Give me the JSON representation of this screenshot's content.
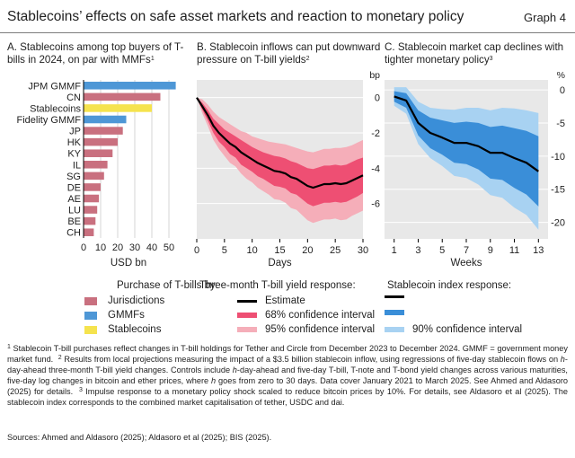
{
  "header": {
    "title": "Stablecoins’ effects on safe asset markets and reaction to monetary policy",
    "graph_number": "Graph 4"
  },
  "panels": {
    "a": {
      "title": "A. Stablecoins among top buyers of T-bills in 2024, on par with MMFs",
      "sup": "1"
    },
    "b": {
      "title": "B. Stablecoin inflows can put downward pressure on T-bill yields",
      "sup": "2"
    },
    "c": {
      "title": "C. Stablecoin market cap declines with tighter monetary policy",
      "sup": "3"
    }
  },
  "legends": {
    "a": {
      "heading": "Purchase of T-bills by:",
      "items": [
        {
          "label": "Jurisdictions",
          "color": "#c9707f"
        },
        {
          "label": "GMMFs",
          "color": "#4e97d6"
        },
        {
          "label": "Stablecoins",
          "color": "#f5e34e"
        }
      ]
    },
    "b": {
      "heading": "Three-month T-bill yield response:",
      "items": [
        {
          "label": "Estimate",
          "color": "#000000"
        },
        {
          "label": "68% confidence interval",
          "color": "#ee4f73"
        },
        {
          "label": "95% confidence interval",
          "color": "#f5aeb9"
        }
      ]
    },
    "c": {
      "heading": "Stablecoin index response:",
      "items": [
        {
          "label": "",
          "color": "#000000"
        },
        {
          "label": "",
          "color": "#3a8ed8"
        },
        {
          "label": "90% confidence interval",
          "color": "#a8d2f2"
        }
      ]
    }
  },
  "footnotes": {
    "n1": "Stablecoin T-bill purchases reflect changes in T-bill holdings for Tether and Circle from December 2023 to December 2024. GMMF = government money market fund.",
    "n2a": "Results from local projections measuring the impact of a $3.5 billion stablecoin inflow, using regressions of five-day stablecoin flows on ",
    "n2b": "-day-ahead three-month T-bill yield changes. Controls include ",
    "n2c": "-day-ahead and five-day T-bill, T-note and T-bond yield changes across various maturities, five-day log changes in bitcoin and ether prices, where ",
    "n2d": " goes from zero to 30 days. Data cover January 2021 to March 2025. See Ahmed and Aldasoro (2025) for details.",
    "n3": "Impulse response to a monetary policy shock scaled to reduce bitcoin prices by 10%. For details, see Aldasoro et al (2025). The stablecoin index corresponds to the combined market capitalisation of tether, USDC and dai.",
    "h": "h",
    "m1": "1",
    "m2": "2",
    "m3": "3"
  },
  "sources": "Sources: Ahmed and Aldasoro (2025); Aldasoro et al (2025); BIS (2025).",
  "chart_data": [
    {
      "type": "bar",
      "orientation": "horizontal",
      "categories": [
        "JPM GMMF",
        "CN",
        "Stablecoins",
        "Fidelity GMMF",
        "JP",
        "HK",
        "KY",
        "IL",
        "SG",
        "DE",
        "AE",
        "LU",
        "BE",
        "CH"
      ],
      "values": [
        54,
        45,
        40,
        25,
        23,
        20,
        17,
        14,
        12,
        10,
        9,
        8,
        7,
        6
      ],
      "groups": [
        "GMMFs",
        "Jurisdictions",
        "Stablecoins",
        "GMMFs",
        "Jurisdictions",
        "Jurisdictions",
        "Jurisdictions",
        "Jurisdictions",
        "Jurisdictions",
        "Jurisdictions",
        "Jurisdictions",
        "Jurisdictions",
        "Jurisdictions",
        "Jurisdictions"
      ],
      "xlabel": "USD bn",
      "xlim": [
        0,
        60
      ],
      "xticks": [
        0,
        10,
        20,
        30,
        40,
        50
      ],
      "grid": "vertical"
    },
    {
      "type": "line",
      "x": [
        0,
        1,
        2,
        3,
        4,
        5,
        6,
        7,
        8,
        9,
        10,
        11,
        12,
        13,
        14,
        15,
        16,
        17,
        18,
        19,
        20,
        21,
        22,
        23,
        24,
        25,
        26,
        27,
        28,
        29,
        30
      ],
      "series": [
        {
          "name": "Estimate",
          "values": [
            0,
            -0.5,
            -1.0,
            -1.6,
            -2.0,
            -2.3,
            -2.6,
            -2.8,
            -3.1,
            -3.3,
            -3.5,
            -3.7,
            -3.85,
            -4.0,
            -4.15,
            -4.2,
            -4.3,
            -4.5,
            -4.6,
            -4.8,
            -5.0,
            -5.1,
            -5.0,
            -4.9,
            -4.9,
            -4.85,
            -4.9,
            -4.85,
            -4.7,
            -4.55,
            -4.4
          ]
        },
        {
          "name": "68% confidence interval",
          "upper": [
            0,
            -0.3,
            -0.7,
            -1.2,
            -1.5,
            -1.8,
            -2.0,
            -2.2,
            -2.4,
            -2.6,
            -2.8,
            -2.95,
            -3.1,
            -3.2,
            -3.3,
            -3.35,
            -3.45,
            -3.6,
            -3.7,
            -3.85,
            -4.0,
            -4.05,
            -3.95,
            -3.85,
            -3.85,
            -3.8,
            -3.85,
            -3.8,
            -3.65,
            -3.5,
            -3.4
          ],
          "lower": [
            0,
            -0.7,
            -1.3,
            -2.0,
            -2.5,
            -2.8,
            -3.2,
            -3.4,
            -3.8,
            -4.0,
            -4.2,
            -4.45,
            -4.6,
            -4.8,
            -5.0,
            -5.05,
            -5.15,
            -5.4,
            -5.5,
            -5.75,
            -6.0,
            -6.15,
            -6.05,
            -5.95,
            -5.95,
            -5.9,
            -5.95,
            -5.9,
            -5.75,
            -5.6,
            -5.4
          ]
        },
        {
          "name": "95% confidence interval",
          "upper": [
            0,
            -0.1,
            -0.4,
            -0.8,
            -1.1,
            -1.3,
            -1.5,
            -1.7,
            -1.9,
            -2.0,
            -2.2,
            -2.3,
            -2.4,
            -2.5,
            -2.55,
            -2.6,
            -2.65,
            -2.75,
            -2.85,
            -2.95,
            -3.05,
            -3.1,
            -3.0,
            -2.9,
            -2.9,
            -2.85,
            -2.85,
            -2.8,
            -2.7,
            -2.55,
            -2.4
          ],
          "lower": [
            0,
            -0.9,
            -1.6,
            -2.4,
            -2.9,
            -3.3,
            -3.7,
            -3.9,
            -4.3,
            -4.6,
            -4.8,
            -5.1,
            -5.3,
            -5.5,
            -5.75,
            -5.8,
            -5.95,
            -6.25,
            -6.35,
            -6.65,
            -6.95,
            -7.1,
            -7.0,
            -6.9,
            -6.9,
            -6.85,
            -6.95,
            -6.9,
            -6.7,
            -6.55,
            -6.4
          ]
        }
      ],
      "xlabel": "Days",
      "ylabel": "bp",
      "xlim": [
        0,
        30
      ],
      "ylim": [
        -8,
        1
      ],
      "xticks": [
        0,
        5,
        10,
        15,
        20,
        25,
        30
      ],
      "yticks": [
        0,
        -2,
        -4,
        -6
      ],
      "grid": "horizontal",
      "y_axis_side": "right"
    },
    {
      "type": "line",
      "x": [
        1,
        2,
        3,
        4,
        5,
        6,
        7,
        8,
        9,
        10,
        11,
        12,
        13
      ],
      "series": [
        {
          "name": "",
          "values": [
            -1.0,
            -1.6,
            -5.0,
            -6.5,
            -7.2,
            -8.0,
            -8.0,
            -8.5,
            -9.5,
            -9.5,
            -10.3,
            -11.0,
            -12.3
          ]
        },
        {
          "name": "",
          "upper": [
            -0.2,
            -0.5,
            -3.1,
            -4.2,
            -4.6,
            -5.0,
            -4.8,
            -5.0,
            -5.6,
            -5.4,
            -5.8,
            -6.2,
            -7.0
          ],
          "lower": [
            -1.8,
            -2.7,
            -6.9,
            -8.8,
            -9.8,
            -11.0,
            -11.2,
            -12.0,
            -13.4,
            -13.6,
            -14.8,
            -15.8,
            -17.6
          ]
        },
        {
          "name": "90% confidence interval",
          "upper": [
            0.4,
            0.4,
            -1.8,
            -2.7,
            -2.9,
            -3.0,
            -2.7,
            -2.7,
            -3.1,
            -2.7,
            -2.8,
            -3.1,
            -3.5
          ],
          "lower": [
            -2.4,
            -3.6,
            -8.2,
            -10.3,
            -11.5,
            -13.0,
            -13.3,
            -14.3,
            -15.9,
            -16.3,
            -17.8,
            -18.9,
            -21.1
          ]
        }
      ],
      "xlabel": "Weeks",
      "ylabel": "%",
      "xlim": [
        0.2,
        13.8
      ],
      "ylim": [
        -22.5,
        1.5
      ],
      "xticks": [
        1,
        3,
        5,
        7,
        9,
        11,
        13
      ],
      "yticks": [
        0,
        -5,
        -10,
        -15,
        -20
      ],
      "grid": "horizontal",
      "y_axis_side": "right"
    }
  ]
}
